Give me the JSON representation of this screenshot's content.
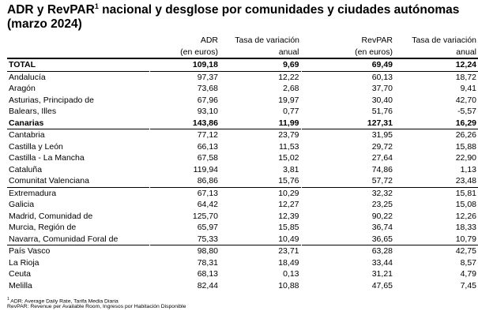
{
  "title": {
    "main": "ADR y RevPAR",
    "sup": "1",
    "rest": " nacional y desglose por comunidades y ciudades autónomas (marzo 2024)"
  },
  "headers": {
    "row1": [
      "",
      "ADR",
      "Tasa de variación",
      "RevPAR",
      "Tasa de variación"
    ],
    "row2": [
      "",
      "(en euros)",
      "anual",
      "(en euros)",
      "anual"
    ]
  },
  "rows": [
    {
      "name": "TOTAL",
      "adr": "109,18",
      "adr_var": "9,69",
      "revpar": "69,49",
      "revpar_var": "12,24",
      "bold": true
    },
    {
      "name": "Andalucía",
      "adr": "97,37",
      "adr_var": "12,22",
      "revpar": "60,13",
      "revpar_var": "18,72"
    },
    {
      "name": "Aragón",
      "adr": "73,68",
      "adr_var": "2,68",
      "revpar": "37,70",
      "revpar_var": "9,41"
    },
    {
      "name": "Asturias, Principado de",
      "adr": "67,96",
      "adr_var": "19,97",
      "revpar": "30,40",
      "revpar_var": "42,70"
    },
    {
      "name": "Balears, Illes",
      "adr": "93,10",
      "adr_var": "0,77",
      "revpar": "51,76",
      "revpar_var": "-5,57"
    },
    {
      "name": "Canarias",
      "adr": "143,86",
      "adr_var": "11,99",
      "revpar": "127,31",
      "revpar_var": "16,29",
      "bold": true
    },
    {
      "name": "Cantabria",
      "adr": "77,12",
      "adr_var": "23,79",
      "revpar": "31,95",
      "revpar_var": "26,26"
    },
    {
      "name": "Castilla y León",
      "adr": "66,13",
      "adr_var": "11,53",
      "revpar": "29,72",
      "revpar_var": "15,88"
    },
    {
      "name": "Castilla - La Mancha",
      "adr": "67,58",
      "adr_var": "15,02",
      "revpar": "27,64",
      "revpar_var": "22,90"
    },
    {
      "name": "Cataluña",
      "adr": "119,94",
      "adr_var": "3,81",
      "revpar": "74,86",
      "revpar_var": "1,13"
    },
    {
      "name": "Comunitat Valenciana",
      "adr": "86,86",
      "adr_var": "15,76",
      "revpar": "57,72",
      "revpar_var": "23,48"
    },
    {
      "name": "Extremadura",
      "adr": "67,13",
      "adr_var": "10,29",
      "revpar": "32,32",
      "revpar_var": "15,81"
    },
    {
      "name": "Galicia",
      "adr": "64,42",
      "adr_var": "12,27",
      "revpar": "23,25",
      "revpar_var": "15,08"
    },
    {
      "name": "Madrid, Comunidad de",
      "adr": "125,70",
      "adr_var": "12,39",
      "revpar": "90,22",
      "revpar_var": "12,26"
    },
    {
      "name": "Murcia, Región de",
      "adr": "65,97",
      "adr_var": "15,85",
      "revpar": "36,74",
      "revpar_var": "18,33"
    },
    {
      "name": "Navarra, Comunidad Foral de",
      "adr": "75,33",
      "adr_var": "10,49",
      "revpar": "36,65",
      "revpar_var": "10,79"
    },
    {
      "name": "País Vasco",
      "adr": "98,80",
      "adr_var": "23,71",
      "revpar": "63,28",
      "revpar_var": "42,75"
    },
    {
      "name": "La Rioja",
      "adr": "78,31",
      "adr_var": "18,49",
      "revpar": "33,44",
      "revpar_var": "8,57"
    },
    {
      "name": "Ceuta",
      "adr": "68,13",
      "adr_var": "0,13",
      "revpar": "31,21",
      "revpar_var": "4,79"
    },
    {
      "name": "Melilla",
      "adr": "82,44",
      "adr_var": "10,88",
      "revpar": "47,65",
      "revpar_var": "7,45"
    }
  ],
  "separators_before": [
    "Andalucía",
    "Cantabria",
    "Extremadura",
    "País Vasco"
  ],
  "footnotes": {
    "sup": "1",
    "line1": " ADR: Average Daily Rate, Tarifa Media Diaria",
    "line2": "RevPAR: Revenue per Available Room, Ingresos por Habitación Disponible"
  }
}
